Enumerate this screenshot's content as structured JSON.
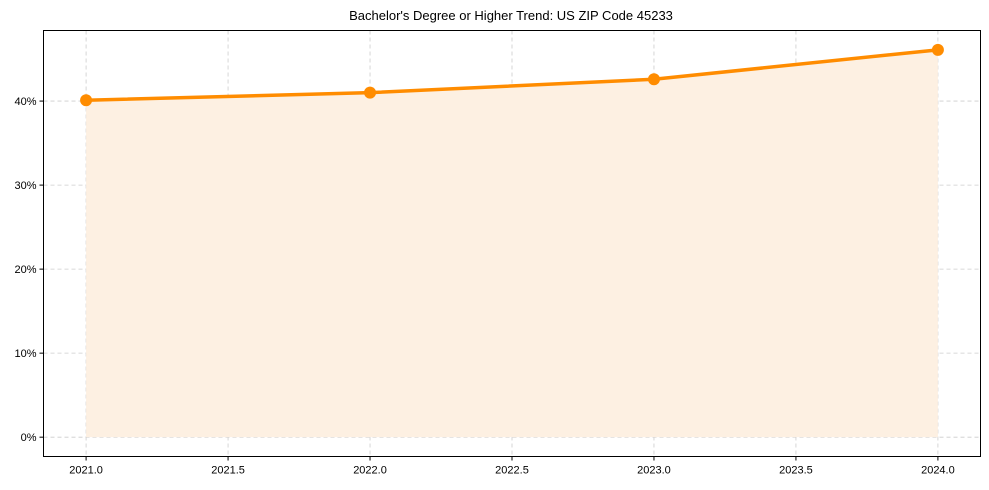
{
  "chart_data": {
    "type": "line",
    "title": "Bachelor's Degree or Higher Trend: US ZIP Code 45233",
    "xlabel": "",
    "ylabel": "",
    "x": [
      2021,
      2022,
      2023,
      2024
    ],
    "series": [
      {
        "name": "Bachelor's Degree or Higher",
        "values": [
          40.1,
          41.0,
          42.6,
          46.1
        ],
        "color": "#ff8c00",
        "fill": "#fdf0e2"
      }
    ],
    "x_ticks": [
      "2021.0",
      "2021.5",
      "2022.0",
      "2022.5",
      "2023.0",
      "2023.5",
      "2024.0"
    ],
    "x_tick_values": [
      2021.0,
      2021.5,
      2022.0,
      2022.5,
      2023.0,
      2023.5,
      2024.0
    ],
    "y_ticks": [
      "0%",
      "10%",
      "20%",
      "30%",
      "40%"
    ],
    "y_tick_values": [
      0,
      10,
      20,
      30,
      40
    ],
    "xlim": [
      2020.85,
      2024.15
    ],
    "ylim": [
      -2.3,
      48.4
    ],
    "grid": true,
    "legend": "none"
  }
}
